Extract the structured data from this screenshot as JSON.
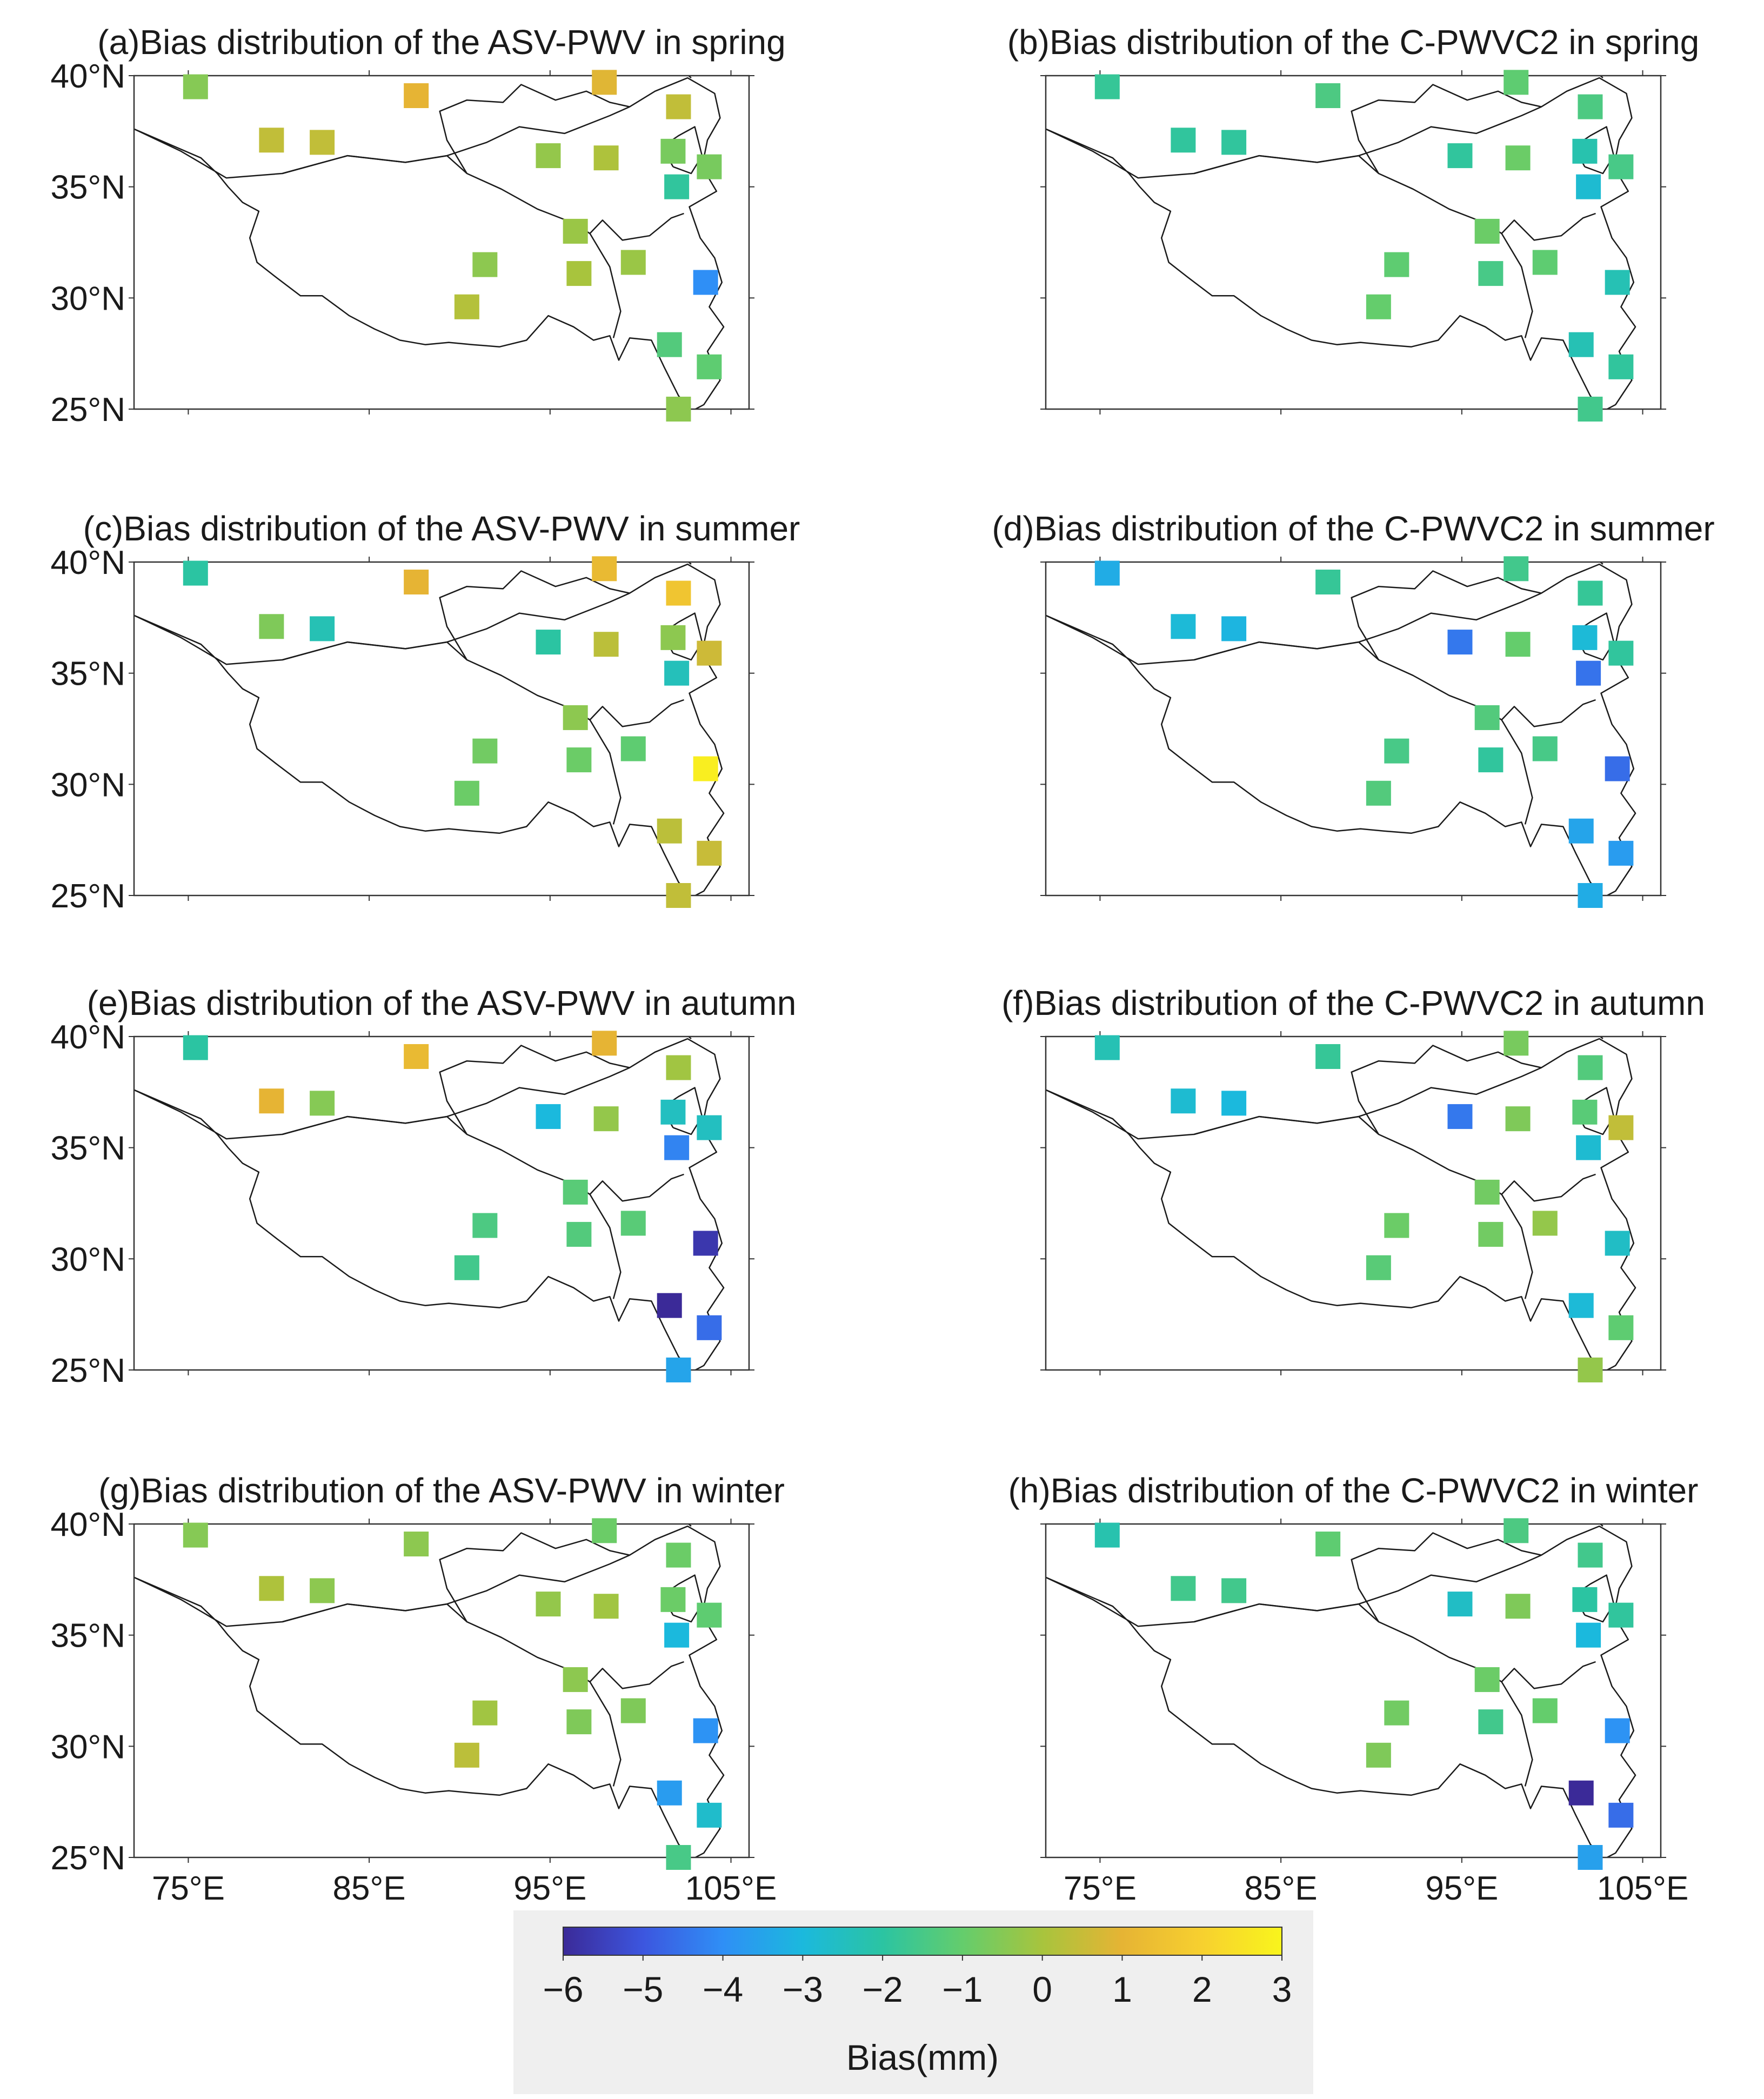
{
  "figure": {
    "colorbar": {
      "label": "Bias(mm)",
      "min": -6,
      "max": 3,
      "ticks": [
        -6,
        -5,
        -4,
        -3,
        -2,
        -1,
        0,
        1,
        2,
        3
      ],
      "tick_labels": [
        "−6",
        "−5",
        "−4",
        "−3",
        "−2",
        "−1",
        "0",
        "1",
        "2",
        "3"
      ],
      "colormap": [
        "#3b2a98",
        "#3c56df",
        "#2f8ff6",
        "#1bb9dd",
        "#2bc4a2",
        "#64cd6c",
        "#a8c43d",
        "#e6b434",
        "#f7d02f",
        "#f9f51c"
      ]
    },
    "colors": {
      "background": "#ffffff",
      "frame": "#333333",
      "coast": "#1a1a1a",
      "colorbar_panel": "#efefef"
    }
  },
  "chart_data": [
    {
      "type": "scatter",
      "title": "(a)Bias distribution of the ASV-PWV in spring",
      "xlim": [
        72,
        106
      ],
      "ylim": [
        25,
        40
      ],
      "xticks": [
        "75°E",
        "85°E",
        "95°E",
        "105°E"
      ],
      "yticks": [
        "40°N",
        "35°N",
        "30°N",
        "25°N"
      ],
      "points": [
        {
          "lon": 75.4,
          "lat": 39.5,
          "bias": -0.5
        },
        {
          "lon": 79.6,
          "lat": 37.1,
          "bias": 0.4
        },
        {
          "lon": 82.4,
          "lat": 37.0,
          "bias": 0.4
        },
        {
          "lon": 87.6,
          "lat": 39.1,
          "bias": 1.0
        },
        {
          "lon": 98.0,
          "lat": 39.7,
          "bias": 0.9
        },
        {
          "lon": 102.1,
          "lat": 38.6,
          "bias": 0.4
        },
        {
          "lon": 94.9,
          "lat": 36.4,
          "bias": -0.3
        },
        {
          "lon": 98.1,
          "lat": 36.3,
          "bias": 0.1
        },
        {
          "lon": 101.8,
          "lat": 36.6,
          "bias": -0.7
        },
        {
          "lon": 103.8,
          "lat": 35.9,
          "bias": -0.7
        },
        {
          "lon": 102.0,
          "lat": 35.0,
          "bias": -1.9
        },
        {
          "lon": 96.4,
          "lat": 33.0,
          "bias": -0.2
        },
        {
          "lon": 91.4,
          "lat": 31.5,
          "bias": -0.4
        },
        {
          "lon": 96.6,
          "lat": 31.1,
          "bias": 0.0
        },
        {
          "lon": 99.6,
          "lat": 31.6,
          "bias": -0.2
        },
        {
          "lon": 90.4,
          "lat": 29.6,
          "bias": 0.2
        },
        {
          "lon": 103.6,
          "lat": 30.7,
          "bias": -4.0
        },
        {
          "lon": 101.6,
          "lat": 27.9,
          "bias": -1.3
        },
        {
          "lon": 103.8,
          "lat": 26.9,
          "bias": -1.1
        },
        {
          "lon": 102.1,
          "lat": 25.0,
          "bias": -0.4
        }
      ]
    },
    {
      "type": "scatter",
      "title": "(b)Bias distribution of the C-PWVC2 in spring",
      "xlim": [
        72,
        106
      ],
      "ylim": [
        25,
        40
      ],
      "xticks": [
        "75°E",
        "85°E",
        "95°E",
        "105°E"
      ],
      "yticks": [
        "40°N",
        "35°N",
        "30°N",
        "25°N"
      ],
      "points": [
        {
          "lon": 75.4,
          "lat": 39.5,
          "bias": -1.8
        },
        {
          "lon": 79.6,
          "lat": 37.1,
          "bias": -1.9
        },
        {
          "lon": 82.4,
          "lat": 37.0,
          "bias": -1.9
        },
        {
          "lon": 87.6,
          "lat": 39.1,
          "bias": -1.4
        },
        {
          "lon": 98.0,
          "lat": 39.7,
          "bias": -1.1
        },
        {
          "lon": 102.1,
          "lat": 38.6,
          "bias": -1.4
        },
        {
          "lon": 94.9,
          "lat": 36.4,
          "bias": -1.9
        },
        {
          "lon": 98.1,
          "lat": 36.3,
          "bias": -0.9
        },
        {
          "lon": 101.8,
          "lat": 36.6,
          "bias": -2.2
        },
        {
          "lon": 103.8,
          "lat": 35.9,
          "bias": -1.5
        },
        {
          "lon": 102.0,
          "lat": 35.0,
          "bias": -2.8
        },
        {
          "lon": 96.4,
          "lat": 33.0,
          "bias": -0.9
        },
        {
          "lon": 91.4,
          "lat": 31.5,
          "bias": -1.1
        },
        {
          "lon": 96.6,
          "lat": 31.1,
          "bias": -1.5
        },
        {
          "lon": 99.6,
          "lat": 31.6,
          "bias": -1.1
        },
        {
          "lon": 90.4,
          "lat": 29.6,
          "bias": -1.0
        },
        {
          "lon": 103.6,
          "lat": 30.7,
          "bias": -2.3
        },
        {
          "lon": 101.6,
          "lat": 27.9,
          "bias": -2.3
        },
        {
          "lon": 103.8,
          "lat": 26.9,
          "bias": -1.9
        },
        {
          "lon": 102.1,
          "lat": 25.0,
          "bias": -1.6
        }
      ]
    },
    {
      "type": "scatter",
      "title": "(c)Bias distribution of the ASV-PWV in summer",
      "xlim": [
        72,
        106
      ],
      "ylim": [
        25,
        40
      ],
      "xticks": [
        "75°E",
        "85°E",
        "95°E",
        "105°E"
      ],
      "yticks": [
        "40°N",
        "35°N",
        "30°N",
        "25°N"
      ],
      "points": [
        {
          "lon": 75.4,
          "lat": 39.5,
          "bias": -2.0
        },
        {
          "lon": 79.6,
          "lat": 37.1,
          "bias": -0.6
        },
        {
          "lon": 82.4,
          "lat": 37.0,
          "bias": -2.3
        },
        {
          "lon": 87.6,
          "lat": 39.1,
          "bias": 1.0
        },
        {
          "lon": 98.0,
          "lat": 39.7,
          "bias": 1.2
        },
        {
          "lon": 102.1,
          "lat": 38.6,
          "bias": 1.6
        },
        {
          "lon": 94.9,
          "lat": 36.4,
          "bias": -2.0
        },
        {
          "lon": 98.1,
          "lat": 36.3,
          "bias": 0.3
        },
        {
          "lon": 101.8,
          "lat": 36.6,
          "bias": -0.4
        },
        {
          "lon": 103.8,
          "lat": 35.9,
          "bias": 0.6
        },
        {
          "lon": 102.0,
          "lat": 35.0,
          "bias": -2.4
        },
        {
          "lon": 96.4,
          "lat": 33.0,
          "bias": -0.4
        },
        {
          "lon": 91.4,
          "lat": 31.5,
          "bias": -0.8
        },
        {
          "lon": 96.6,
          "lat": 31.1,
          "bias": -0.9
        },
        {
          "lon": 99.6,
          "lat": 31.6,
          "bias": -1.1
        },
        {
          "lon": 90.4,
          "lat": 29.6,
          "bias": -0.9
        },
        {
          "lon": 103.6,
          "lat": 30.7,
          "bias": 2.8
        },
        {
          "lon": 101.6,
          "lat": 27.9,
          "bias": 0.3
        },
        {
          "lon": 103.8,
          "lat": 26.9,
          "bias": 0.5
        },
        {
          "lon": 102.1,
          "lat": 25.0,
          "bias": 0.4
        }
      ]
    },
    {
      "type": "scatter",
      "title": "(d)Bias distribution of the C-PWVC2 in summer",
      "xlim": [
        72,
        106
      ],
      "ylim": [
        25,
        40
      ],
      "xticks": [
        "75°E",
        "85°E",
        "95°E",
        "105°E"
      ],
      "yticks": [
        "40°N",
        "35°N",
        "30°N",
        "25°N"
      ],
      "points": [
        {
          "lon": 75.4,
          "lat": 39.5,
          "bias": -3.3
        },
        {
          "lon": 79.6,
          "lat": 37.1,
          "bias": -2.9
        },
        {
          "lon": 82.4,
          "lat": 37.0,
          "bias": -3.1
        },
        {
          "lon": 87.6,
          "lat": 39.1,
          "bias": -1.8
        },
        {
          "lon": 98.0,
          "lat": 39.7,
          "bias": -1.6
        },
        {
          "lon": 102.1,
          "lat": 38.6,
          "bias": -1.8
        },
        {
          "lon": 94.9,
          "lat": 36.4,
          "bias": -4.4
        },
        {
          "lon": 98.1,
          "lat": 36.3,
          "bias": -1.0
        },
        {
          "lon": 101.8,
          "lat": 36.6,
          "bias": -2.9
        },
        {
          "lon": 103.8,
          "lat": 35.9,
          "bias": -1.9
        },
        {
          "lon": 102.0,
          "lat": 35.0,
          "bias": -4.5
        },
        {
          "lon": 96.4,
          "lat": 33.0,
          "bias": -1.3
        },
        {
          "lon": 91.4,
          "lat": 31.5,
          "bias": -1.5
        },
        {
          "lon": 96.6,
          "lat": 31.1,
          "bias": -1.9
        },
        {
          "lon": 99.6,
          "lat": 31.6,
          "bias": -1.5
        },
        {
          "lon": 90.4,
          "lat": 29.6,
          "bias": -1.3
        },
        {
          "lon": 103.6,
          "lat": 30.7,
          "bias": -4.6
        },
        {
          "lon": 101.6,
          "lat": 27.9,
          "bias": -3.5
        },
        {
          "lon": 103.8,
          "lat": 26.9,
          "bias": -3.7
        },
        {
          "lon": 102.1,
          "lat": 25.0,
          "bias": -3.3
        }
      ]
    },
    {
      "type": "scatter",
      "title": "(e)Bias distribution of the ASV-PWV in autumn",
      "xlim": [
        72,
        106
      ],
      "ylim": [
        25,
        40
      ],
      "xticks": [
        "75°E",
        "85°E",
        "95°E",
        "105°E"
      ],
      "yticks": [
        "40°N",
        "35°N",
        "30°N",
        "25°N"
      ],
      "points": [
        {
          "lon": 75.4,
          "lat": 39.5,
          "bias": -2.0
        },
        {
          "lon": 79.6,
          "lat": 37.1,
          "bias": 1.0
        },
        {
          "lon": 82.4,
          "lat": 37.0,
          "bias": -0.5
        },
        {
          "lon": 87.6,
          "lat": 39.1,
          "bias": 1.2
        },
        {
          "lon": 98.0,
          "lat": 39.7,
          "bias": 1.0
        },
        {
          "lon": 102.1,
          "lat": 38.6,
          "bias": -0.1
        },
        {
          "lon": 94.9,
          "lat": 36.4,
          "bias": -3.0
        },
        {
          "lon": 98.1,
          "lat": 36.3,
          "bias": -0.3
        },
        {
          "lon": 101.8,
          "lat": 36.6,
          "bias": -2.5
        },
        {
          "lon": 103.8,
          "lat": 35.9,
          "bias": -2.5
        },
        {
          "lon": 102.0,
          "lat": 35.0,
          "bias": -4.2
        },
        {
          "lon": 96.4,
          "lat": 33.0,
          "bias": -1.2
        },
        {
          "lon": 91.4,
          "lat": 31.5,
          "bias": -1.4
        },
        {
          "lon": 96.6,
          "lat": 31.1,
          "bias": -1.3
        },
        {
          "lon": 99.6,
          "lat": 31.6,
          "bias": -1.2
        },
        {
          "lon": 90.4,
          "lat": 29.6,
          "bias": -1.6
        },
        {
          "lon": 103.6,
          "lat": 30.7,
          "bias": -5.7
        },
        {
          "lon": 101.6,
          "lat": 27.9,
          "bias": -6.0
        },
        {
          "lon": 103.8,
          "lat": 26.9,
          "bias": -4.6
        },
        {
          "lon": 102.1,
          "lat": 25.0,
          "bias": -3.5
        }
      ]
    },
    {
      "type": "scatter",
      "title": "(f)Bias distribution of the C-PWVC2 in autumn",
      "xlim": [
        72,
        106
      ],
      "ylim": [
        25,
        40
      ],
      "xticks": [
        "75°E",
        "85°E",
        "95°E",
        "105°E"
      ],
      "yticks": [
        "40°N",
        "35°N",
        "30°N",
        "25°N"
      ],
      "points": [
        {
          "lon": 75.4,
          "lat": 39.5,
          "bias": -2.3
        },
        {
          "lon": 79.6,
          "lat": 37.1,
          "bias": -2.8
        },
        {
          "lon": 82.4,
          "lat": 37.0,
          "bias": -3.0
        },
        {
          "lon": 87.6,
          "lat": 39.1,
          "bias": -1.8
        },
        {
          "lon": 98.0,
          "lat": 39.7,
          "bias": -0.7
        },
        {
          "lon": 102.1,
          "lat": 38.6,
          "bias": -1.3
        },
        {
          "lon": 94.9,
          "lat": 36.4,
          "bias": -4.4
        },
        {
          "lon": 98.1,
          "lat": 36.3,
          "bias": -0.6
        },
        {
          "lon": 101.8,
          "lat": 36.6,
          "bias": -1.2
        },
        {
          "lon": 103.8,
          "lat": 35.9,
          "bias": 0.4
        },
        {
          "lon": 102.0,
          "lat": 35.0,
          "bias": -2.8
        },
        {
          "lon": 96.4,
          "lat": 33.0,
          "bias": -0.8
        },
        {
          "lon": 91.4,
          "lat": 31.5,
          "bias": -0.9
        },
        {
          "lon": 96.6,
          "lat": 31.1,
          "bias": -0.8
        },
        {
          "lon": 99.6,
          "lat": 31.6,
          "bias": -0.3
        },
        {
          "lon": 90.4,
          "lat": 29.6,
          "bias": -1.2
        },
        {
          "lon": 103.6,
          "lat": 30.7,
          "bias": -2.6
        },
        {
          "lon": 101.6,
          "lat": 27.9,
          "bias": -2.9
        },
        {
          "lon": 103.8,
          "lat": 26.9,
          "bias": -1.1
        },
        {
          "lon": 102.1,
          "lat": 25.0,
          "bias": -0.3
        }
      ]
    },
    {
      "type": "scatter",
      "title": "(g)Bias distribution of the ASV-PWV in winter",
      "xlim": [
        72,
        106
      ],
      "ylim": [
        25,
        40
      ],
      "xticks": [
        "75°E",
        "85°E",
        "95°E",
        "105°E"
      ],
      "yticks": [
        "40°N",
        "35°N",
        "30°N",
        "25°N"
      ],
      "points": [
        {
          "lon": 75.4,
          "lat": 39.5,
          "bias": -0.5
        },
        {
          "lon": 79.6,
          "lat": 37.1,
          "bias": 0.1
        },
        {
          "lon": 82.4,
          "lat": 37.0,
          "bias": -0.4
        },
        {
          "lon": 87.6,
          "lat": 39.1,
          "bias": -0.4
        },
        {
          "lon": 98.0,
          "lat": 39.7,
          "bias": -0.9
        },
        {
          "lon": 102.1,
          "lat": 38.6,
          "bias": -0.9
        },
        {
          "lon": 94.9,
          "lat": 36.4,
          "bias": -0.3
        },
        {
          "lon": 98.1,
          "lat": 36.3,
          "bias": -0.1
        },
        {
          "lon": 101.8,
          "lat": 36.6,
          "bias": -0.9
        },
        {
          "lon": 103.8,
          "lat": 35.9,
          "bias": -1.1
        },
        {
          "lon": 102.0,
          "lat": 35.0,
          "bias": -3.0
        },
        {
          "lon": 96.4,
          "lat": 33.0,
          "bias": -0.4
        },
        {
          "lon": 91.4,
          "lat": 31.5,
          "bias": -0.1
        },
        {
          "lon": 96.6,
          "lat": 31.1,
          "bias": -0.6
        },
        {
          "lon": 99.6,
          "lat": 31.6,
          "bias": -0.6
        },
        {
          "lon": 90.4,
          "lat": 29.6,
          "bias": 0.3
        },
        {
          "lon": 103.6,
          "lat": 30.7,
          "bias": -3.9
        },
        {
          "lon": 101.6,
          "lat": 27.9,
          "bias": -3.7
        },
        {
          "lon": 103.8,
          "lat": 26.9,
          "bias": -2.7
        },
        {
          "lon": 102.1,
          "lat": 25.0,
          "bias": -1.5
        }
      ]
    },
    {
      "type": "scatter",
      "title": "(h)Bias distribution of the C-PWVC2 in winter",
      "xlim": [
        72,
        106
      ],
      "ylim": [
        25,
        40
      ],
      "xticks": [
        "75°E",
        "85°E",
        "95°E",
        "105°E"
      ],
      "yticks": [
        "40°N",
        "35°N",
        "30°N",
        "25°N"
      ],
      "points": [
        {
          "lon": 75.4,
          "lat": 39.5,
          "bias": -2.2
        },
        {
          "lon": 79.6,
          "lat": 37.1,
          "bias": -1.6
        },
        {
          "lon": 82.4,
          "lat": 37.0,
          "bias": -1.6
        },
        {
          "lon": 87.6,
          "lat": 39.1,
          "bias": -1.1
        },
        {
          "lon": 98.0,
          "lat": 39.7,
          "bias": -1.4
        },
        {
          "lon": 102.1,
          "lat": 38.6,
          "bias": -1.6
        },
        {
          "lon": 94.9,
          "lat": 36.4,
          "bias": -2.6
        },
        {
          "lon": 98.1,
          "lat": 36.3,
          "bias": -0.6
        },
        {
          "lon": 101.8,
          "lat": 36.6,
          "bias": -2.0
        },
        {
          "lon": 103.8,
          "lat": 35.9,
          "bias": -1.9
        },
        {
          "lon": 102.0,
          "lat": 35.0,
          "bias": -3.0
        },
        {
          "lon": 96.4,
          "lat": 33.0,
          "bias": -0.9
        },
        {
          "lon": 91.4,
          "lat": 31.5,
          "bias": -0.8
        },
        {
          "lon": 96.6,
          "lat": 31.1,
          "bias": -1.6
        },
        {
          "lon": 99.6,
          "lat": 31.6,
          "bias": -1.0
        },
        {
          "lon": 90.4,
          "lat": 29.6,
          "bias": -0.6
        },
        {
          "lon": 103.6,
          "lat": 30.7,
          "bias": -3.9
        },
        {
          "lon": 101.6,
          "lat": 27.9,
          "bias": -6.0
        },
        {
          "lon": 103.8,
          "lat": 26.9,
          "bias": -4.6
        },
        {
          "lon": 102.1,
          "lat": 25.0,
          "bias": -3.6
        }
      ]
    }
  ]
}
